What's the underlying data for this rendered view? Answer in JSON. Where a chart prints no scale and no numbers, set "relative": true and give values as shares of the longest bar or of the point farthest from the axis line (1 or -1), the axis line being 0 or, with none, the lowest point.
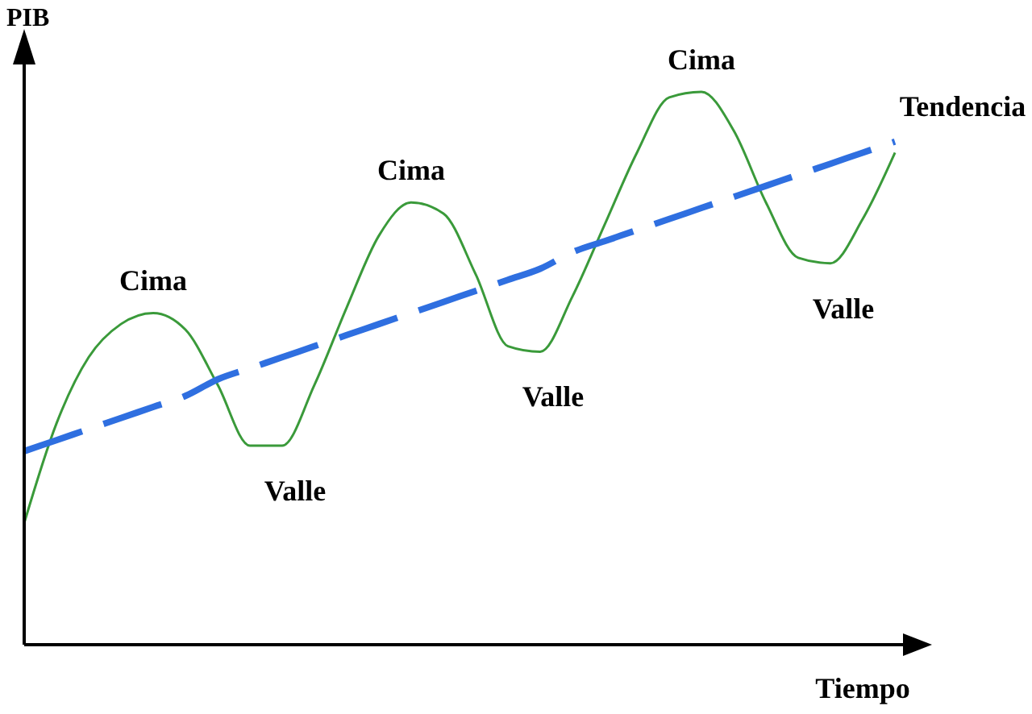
{
  "chart_data": {
    "type": "line",
    "xlabel": "Tiempo",
    "ylabel": "PIB",
    "categories": [
      null,
      null,
      null,
      null,
      null,
      null,
      null,
      null,
      null,
      null,
      null,
      null,
      null,
      null,
      null,
      null,
      null,
      null,
      null,
      null,
      null,
      null,
      null,
      null,
      null,
      null,
      null,
      null
    ],
    "series": [
      {
        "color": "#3a9a3a",
        "line_style": "solid",
        "values": [
          0.22,
          0.4,
          0.52,
          0.58,
          0.6,
          0.57,
          0.47,
          0.36,
          0.36,
          0.47,
          0.61,
          0.74,
          0.8,
          0.78,
          0.67,
          0.54,
          0.53,
          0.63,
          0.76,
          0.89,
          0.99,
          1,
          0.93,
          0.8,
          0.7,
          0.69,
          0.77,
          0.89
        ]
      },
      {
        "name": "Tendencia",
        "color": "#2f6fe0",
        "line_style": "dashed",
        "values": [
          0.35,
          0.37,
          0.39,
          0.41,
          0.43,
          0.45,
          0.48,
          0.5,
          0.52,
          0.54,
          0.56,
          0.58,
          0.6,
          0.62,
          0.64,
          0.66,
          0.68,
          0.71,
          0.73,
          0.75,
          0.77,
          0.79,
          0.81,
          0.83,
          0.85,
          0.87,
          0.89,
          0.91
        ]
      }
    ],
    "annotations": [
      "Cima",
      "Valle",
      "Cima",
      "Valle",
      "Cima",
      "Valle"
    ],
    "relative": true
  }
}
